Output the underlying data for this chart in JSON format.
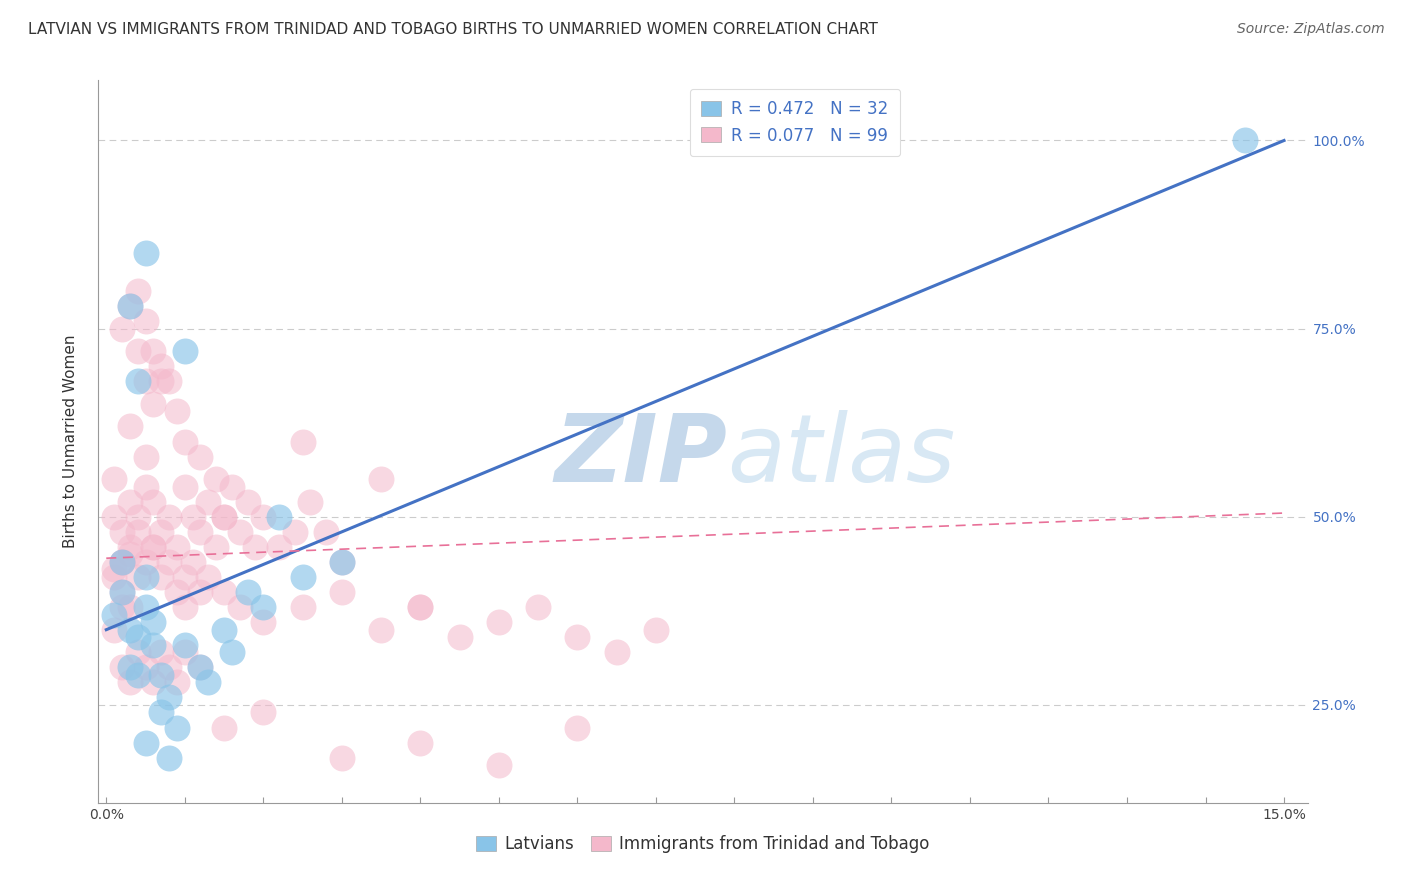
{
  "title": "LATVIAN VS IMMIGRANTS FROM TRINIDAD AND TOBAGO BIRTHS TO UNMARRIED WOMEN CORRELATION CHART",
  "source": "Source: ZipAtlas.com",
  "xlabel_ticks": [
    "0.0%",
    "",
    "",
    "",
    "",
    "",
    "",
    "",
    "",
    "",
    "",
    "",
    "",
    "",
    "15.0%"
  ],
  "xlabel_tick_vals": [
    0.0,
    1.0,
    2.0,
    3.0,
    4.0,
    5.0,
    6.0,
    7.0,
    8.0,
    9.0,
    10.0,
    11.0,
    12.0,
    13.0,
    15.0
  ],
  "ylabel_ticks": [
    "25.0%",
    "50.0%",
    "75.0%",
    "100.0%"
  ],
  "ylabel_tick_vals": [
    25.0,
    50.0,
    75.0,
    100.0
  ],
  "xmin": -0.1,
  "xmax": 15.3,
  "ymin": 12.0,
  "ymax": 108.0,
  "ylabel": "Births to Unmarried Women",
  "watermark_zip": "ZIP",
  "watermark_atlas": "atlas",
  "legend_entries": [
    {
      "color": "#89c4e8",
      "R": "0.472",
      "N": "32"
    },
    {
      "color": "#f4b8cb",
      "R": "0.077",
      "N": "99"
    }
  ],
  "blue_scatter_x": [
    0.5,
    0.6,
    0.4,
    0.3,
    0.2,
    0.5,
    0.1,
    0.2,
    0.3,
    0.4,
    0.6,
    0.7,
    1.0,
    0.8,
    0.9,
    1.2,
    1.5,
    2.0,
    1.8,
    2.5,
    3.0,
    0.3,
    0.5,
    1.0,
    0.4,
    2.2,
    1.6,
    1.3,
    0.7,
    0.5,
    0.8,
    14.5
  ],
  "blue_scatter_y": [
    38,
    33,
    29,
    35,
    40,
    42,
    37,
    44,
    30,
    34,
    36,
    29,
    33,
    26,
    22,
    30,
    35,
    38,
    40,
    42,
    44,
    78,
    85,
    72,
    68,
    50,
    32,
    28,
    24,
    20,
    18,
    100
  ],
  "pink_scatter_x": [
    0.1,
    0.2,
    0.1,
    0.2,
    0.3,
    0.1,
    0.2,
    0.4,
    0.3,
    0.2,
    0.1,
    0.3,
    0.5,
    0.4,
    0.6,
    0.5,
    0.7,
    0.6,
    0.8,
    0.9,
    1.0,
    1.1,
    1.2,
    1.3,
    1.4,
    1.5,
    1.6,
    1.7,
    1.8,
    1.9,
    2.0,
    2.2,
    2.4,
    2.6,
    2.8,
    3.0,
    0.3,
    0.5,
    0.4,
    0.6,
    0.7,
    0.8,
    0.9,
    1.0,
    1.2,
    1.4,
    0.2,
    0.3,
    0.4,
    0.5,
    0.6,
    0.7,
    0.1,
    0.2,
    0.3,
    0.4,
    0.5,
    0.6,
    0.7,
    0.8,
    0.9,
    1.0,
    1.1,
    1.2,
    1.3,
    1.5,
    1.7,
    2.0,
    2.5,
    3.0,
    3.5,
    4.0,
    4.5,
    5.0,
    5.5,
    6.0,
    0.2,
    0.3,
    0.4,
    0.5,
    0.6,
    0.7,
    0.8,
    0.9,
    1.0,
    1.2,
    1.5,
    2.0,
    3.0,
    4.0,
    3.5,
    2.5,
    6.5,
    1.0,
    1.5,
    5.0,
    4.0,
    6.0,
    7.0
  ],
  "pink_scatter_y": [
    43,
    38,
    35,
    40,
    45,
    50,
    48,
    42,
    38,
    44,
    55,
    52,
    58,
    50,
    46,
    54,
    48,
    52,
    50,
    46,
    54,
    50,
    48,
    52,
    46,
    50,
    54,
    48,
    52,
    46,
    50,
    46,
    48,
    52,
    48,
    44,
    62,
    68,
    72,
    65,
    70,
    68,
    64,
    60,
    58,
    55,
    75,
    78,
    80,
    76,
    72,
    68,
    42,
    44,
    46,
    48,
    44,
    46,
    42,
    44,
    40,
    42,
    44,
    40,
    42,
    40,
    38,
    36,
    38,
    40,
    35,
    38,
    34,
    36,
    38,
    34,
    30,
    28,
    32,
    30,
    28,
    32,
    30,
    28,
    32,
    30,
    22,
    24,
    18,
    20,
    55,
    60,
    32,
    38,
    50,
    17,
    38,
    22,
    35
  ],
  "blue_line_x": [
    0.0,
    15.0
  ],
  "blue_line_y": [
    35.0,
    100.0
  ],
  "pink_line_x": [
    0.0,
    15.0
  ],
  "pink_line_y": [
    44.5,
    50.5
  ],
  "title_fontsize": 11,
  "source_fontsize": 10,
  "axis_label_fontsize": 11,
  "tick_fontsize": 10,
  "legend_fontsize": 12,
  "watermark_color_zip": "#c5d8eb",
  "watermark_color_atlas": "#d8e8f4",
  "grid_color": "#cccccc",
  "blue_dot_color": "#89c4e8",
  "pink_dot_color": "#f4b8cb",
  "blue_line_color": "#4472c4",
  "pink_line_color": "#e87098",
  "right_tick_color": "#4472c4"
}
